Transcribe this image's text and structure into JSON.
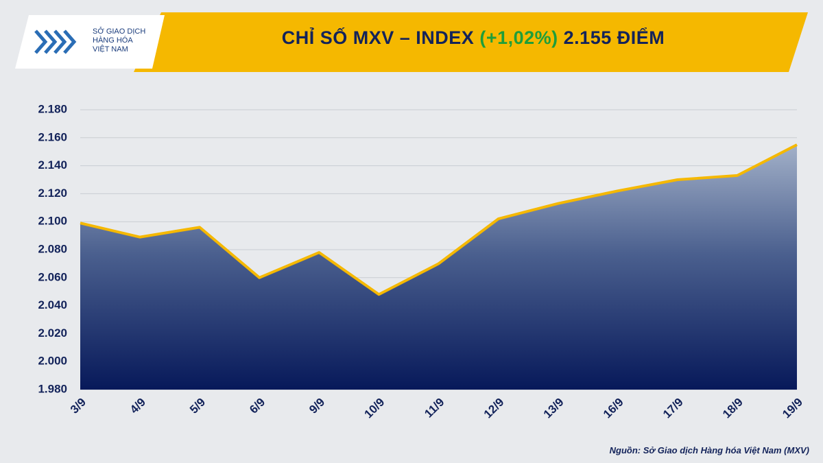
{
  "logo_lines": [
    "SỞ GIAO DỊCH",
    "HÀNG HÓA",
    "VIỆT NAM"
  ],
  "chart_data": {
    "type": "area",
    "title": "CHỈ SỐ MXV – INDEX",
    "change": "(+1,02%)",
    "title_value": "2.155 ĐIỂM",
    "categories": [
      "3/9",
      "4/9",
      "5/9",
      "6/9",
      "9/9",
      "10/9",
      "11/9",
      "12/9",
      "13/9",
      "16/9",
      "17/9",
      "18/9",
      "19/9"
    ],
    "values": [
      2099,
      2089,
      2096,
      2060,
      2078,
      2048,
      2070,
      2102,
      2113,
      2122,
      2130,
      2133,
      2155
    ],
    "color": "#f5b800",
    "ylim": [
      1980,
      2180
    ],
    "yticks": [
      {
        "value": 1980,
        "label": "1.980"
      },
      {
        "value": 2000,
        "label": "2.000"
      },
      {
        "value": 2020,
        "label": "2.020"
      },
      {
        "value": 2040,
        "label": "2.040"
      },
      {
        "value": 2060,
        "label": "2.060"
      },
      {
        "value": 2080,
        "label": "2.080"
      },
      {
        "value": 2100,
        "label": "2.100"
      },
      {
        "value": 2120,
        "label": "2.120"
      },
      {
        "value": 2140,
        "label": "2.140"
      },
      {
        "value": 2160,
        "label": "2.160"
      },
      {
        "value": 2180,
        "label": "2.180"
      }
    ],
    "grid": true,
    "source": "Nguồn: Sở Giao dịch Hàng hóa Việt Nam (MXV)"
  }
}
